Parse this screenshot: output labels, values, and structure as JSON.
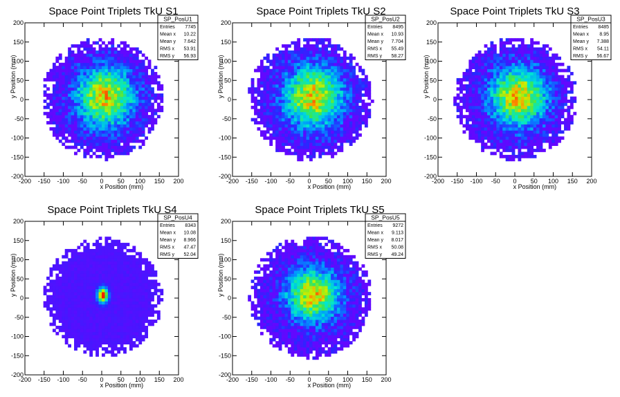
{
  "chart_data": [
    {
      "type": "heatmap",
      "title": "Space Point Triplets TkU S1",
      "xlabel": "x Position (mm)",
      "ylabel": "y Position (mm)",
      "xlim": [
        -200,
        200
      ],
      "ylim": [
        -200,
        200
      ],
      "x_ticks": [
        -200,
        -150,
        -100,
        -50,
        0,
        50,
        100,
        150,
        200
      ],
      "y_ticks": [
        -200,
        -150,
        -100,
        -50,
        0,
        50,
        100,
        150,
        200
      ],
      "stats": {
        "name": "SP_PosU1",
        "rows": [
          {
            "label": "Entries",
            "value": "7745"
          },
          {
            "label": "Mean x",
            "value": "10.22"
          },
          {
            "label": "Mean y",
            "value": "7.642"
          },
          {
            "label": "RMS x",
            "value": "53.91"
          },
          {
            "label": "RMS y",
            "value": "56.93"
          }
        ]
      },
      "distribution": {
        "center_x": 10.22,
        "center_y": 7.642,
        "sigma_x": 53.91,
        "sigma_y": 56.93,
        "support_radius": 160,
        "core": false
      }
    },
    {
      "type": "heatmap",
      "title": "Space Point Triplets TkU S2",
      "xlabel": "x Position (mm)",
      "ylabel": "y Position (mm)",
      "xlim": [
        -200,
        200
      ],
      "ylim": [
        -200,
        200
      ],
      "x_ticks": [
        -200,
        -150,
        -100,
        -50,
        0,
        50,
        100,
        150,
        200
      ],
      "y_ticks": [
        -200,
        -150,
        -100,
        -50,
        0,
        50,
        100,
        150,
        200
      ],
      "stats": {
        "name": "SP_PosU2",
        "rows": [
          {
            "label": "Entries",
            "value": "8495"
          },
          {
            "label": "Mean x",
            "value": "10.93"
          },
          {
            "label": "Mean y",
            "value": "7.704"
          },
          {
            "label": "RMS x",
            "value": "55.49"
          },
          {
            "label": "RMS y",
            "value": "58.27"
          }
        ]
      },
      "distribution": {
        "center_x": 10.93,
        "center_y": 7.704,
        "sigma_x": 55.49,
        "sigma_y": 58.27,
        "support_radius": 162,
        "core": false
      }
    },
    {
      "type": "heatmap",
      "title": "Space Point Triplets TkU S3",
      "xlabel": "x Position (mm)",
      "ylabel": "y Position (mm)",
      "xlim": [
        -200,
        200
      ],
      "ylim": [
        -200,
        200
      ],
      "x_ticks": [
        -200,
        -150,
        -100,
        -50,
        0,
        50,
        100,
        150,
        200
      ],
      "y_ticks": [
        -200,
        -150,
        -100,
        -50,
        0,
        50,
        100,
        150,
        200
      ],
      "stats": {
        "name": "SP_PosU3",
        "rows": [
          {
            "label": "Entries",
            "value": "8485"
          },
          {
            "label": "Mean x",
            "value": "8.95"
          },
          {
            "label": "Mean y",
            "value": "7.388"
          },
          {
            "label": "RMS x",
            "value": "54.11"
          },
          {
            "label": "RMS y",
            "value": "56.67"
          }
        ]
      },
      "distribution": {
        "center_x": 8.95,
        "center_y": 7.388,
        "sigma_x": 54.11,
        "sigma_y": 56.67,
        "support_radius": 160,
        "core": false
      }
    },
    {
      "type": "heatmap",
      "title": "Space Point Triplets TkU S4",
      "xlabel": "x Position (mm)",
      "ylabel": "y Position (mm)",
      "xlim": [
        -200,
        200
      ],
      "ylim": [
        -200,
        200
      ],
      "x_ticks": [
        -200,
        -150,
        -100,
        -50,
        0,
        50,
        100,
        150,
        200
      ],
      "y_ticks": [
        -200,
        -150,
        -100,
        -50,
        0,
        50,
        100,
        150,
        200
      ],
      "stats": {
        "name": "SP_PosU4",
        "rows": [
          {
            "label": "Entries",
            "value": "8343"
          },
          {
            "label": "Mean x",
            "value": "10.08"
          },
          {
            "label": "Mean y",
            "value": "8.966"
          },
          {
            "label": "RMS x",
            "value": "47.47"
          },
          {
            "label": "RMS y",
            "value": "52.04"
          }
        ]
      },
      "distribution": {
        "center_x": 10.08,
        "center_y": 8.966,
        "sigma_x": 47.47,
        "sigma_y": 52.04,
        "support_radius": 155,
        "core": true
      }
    },
    {
      "type": "heatmap",
      "title": "Space Point Triplets TkU S5",
      "xlabel": "x Position (mm)",
      "ylabel": "y Position (mm)",
      "xlim": [
        -200,
        200
      ],
      "ylim": [
        -200,
        200
      ],
      "x_ticks": [
        -200,
        -150,
        -100,
        -50,
        0,
        50,
        100,
        150,
        200
      ],
      "y_ticks": [
        -200,
        -150,
        -100,
        -50,
        0,
        50,
        100,
        150,
        200
      ],
      "stats": {
        "name": "SP_PosU5",
        "rows": [
          {
            "label": "Entries",
            "value": "9272"
          },
          {
            "label": "Mean x",
            "value": "9.113"
          },
          {
            "label": "Mean y",
            "value": "8.017"
          },
          {
            "label": "RMS x",
            "value": "50.08"
          },
          {
            "label": "RMS y",
            "value": "49.24"
          }
        ]
      },
      "distribution": {
        "center_x": 9.113,
        "center_y": 8.017,
        "sigma_x": 50.08,
        "sigma_y": 49.24,
        "support_radius": 160,
        "core": false
      }
    }
  ]
}
